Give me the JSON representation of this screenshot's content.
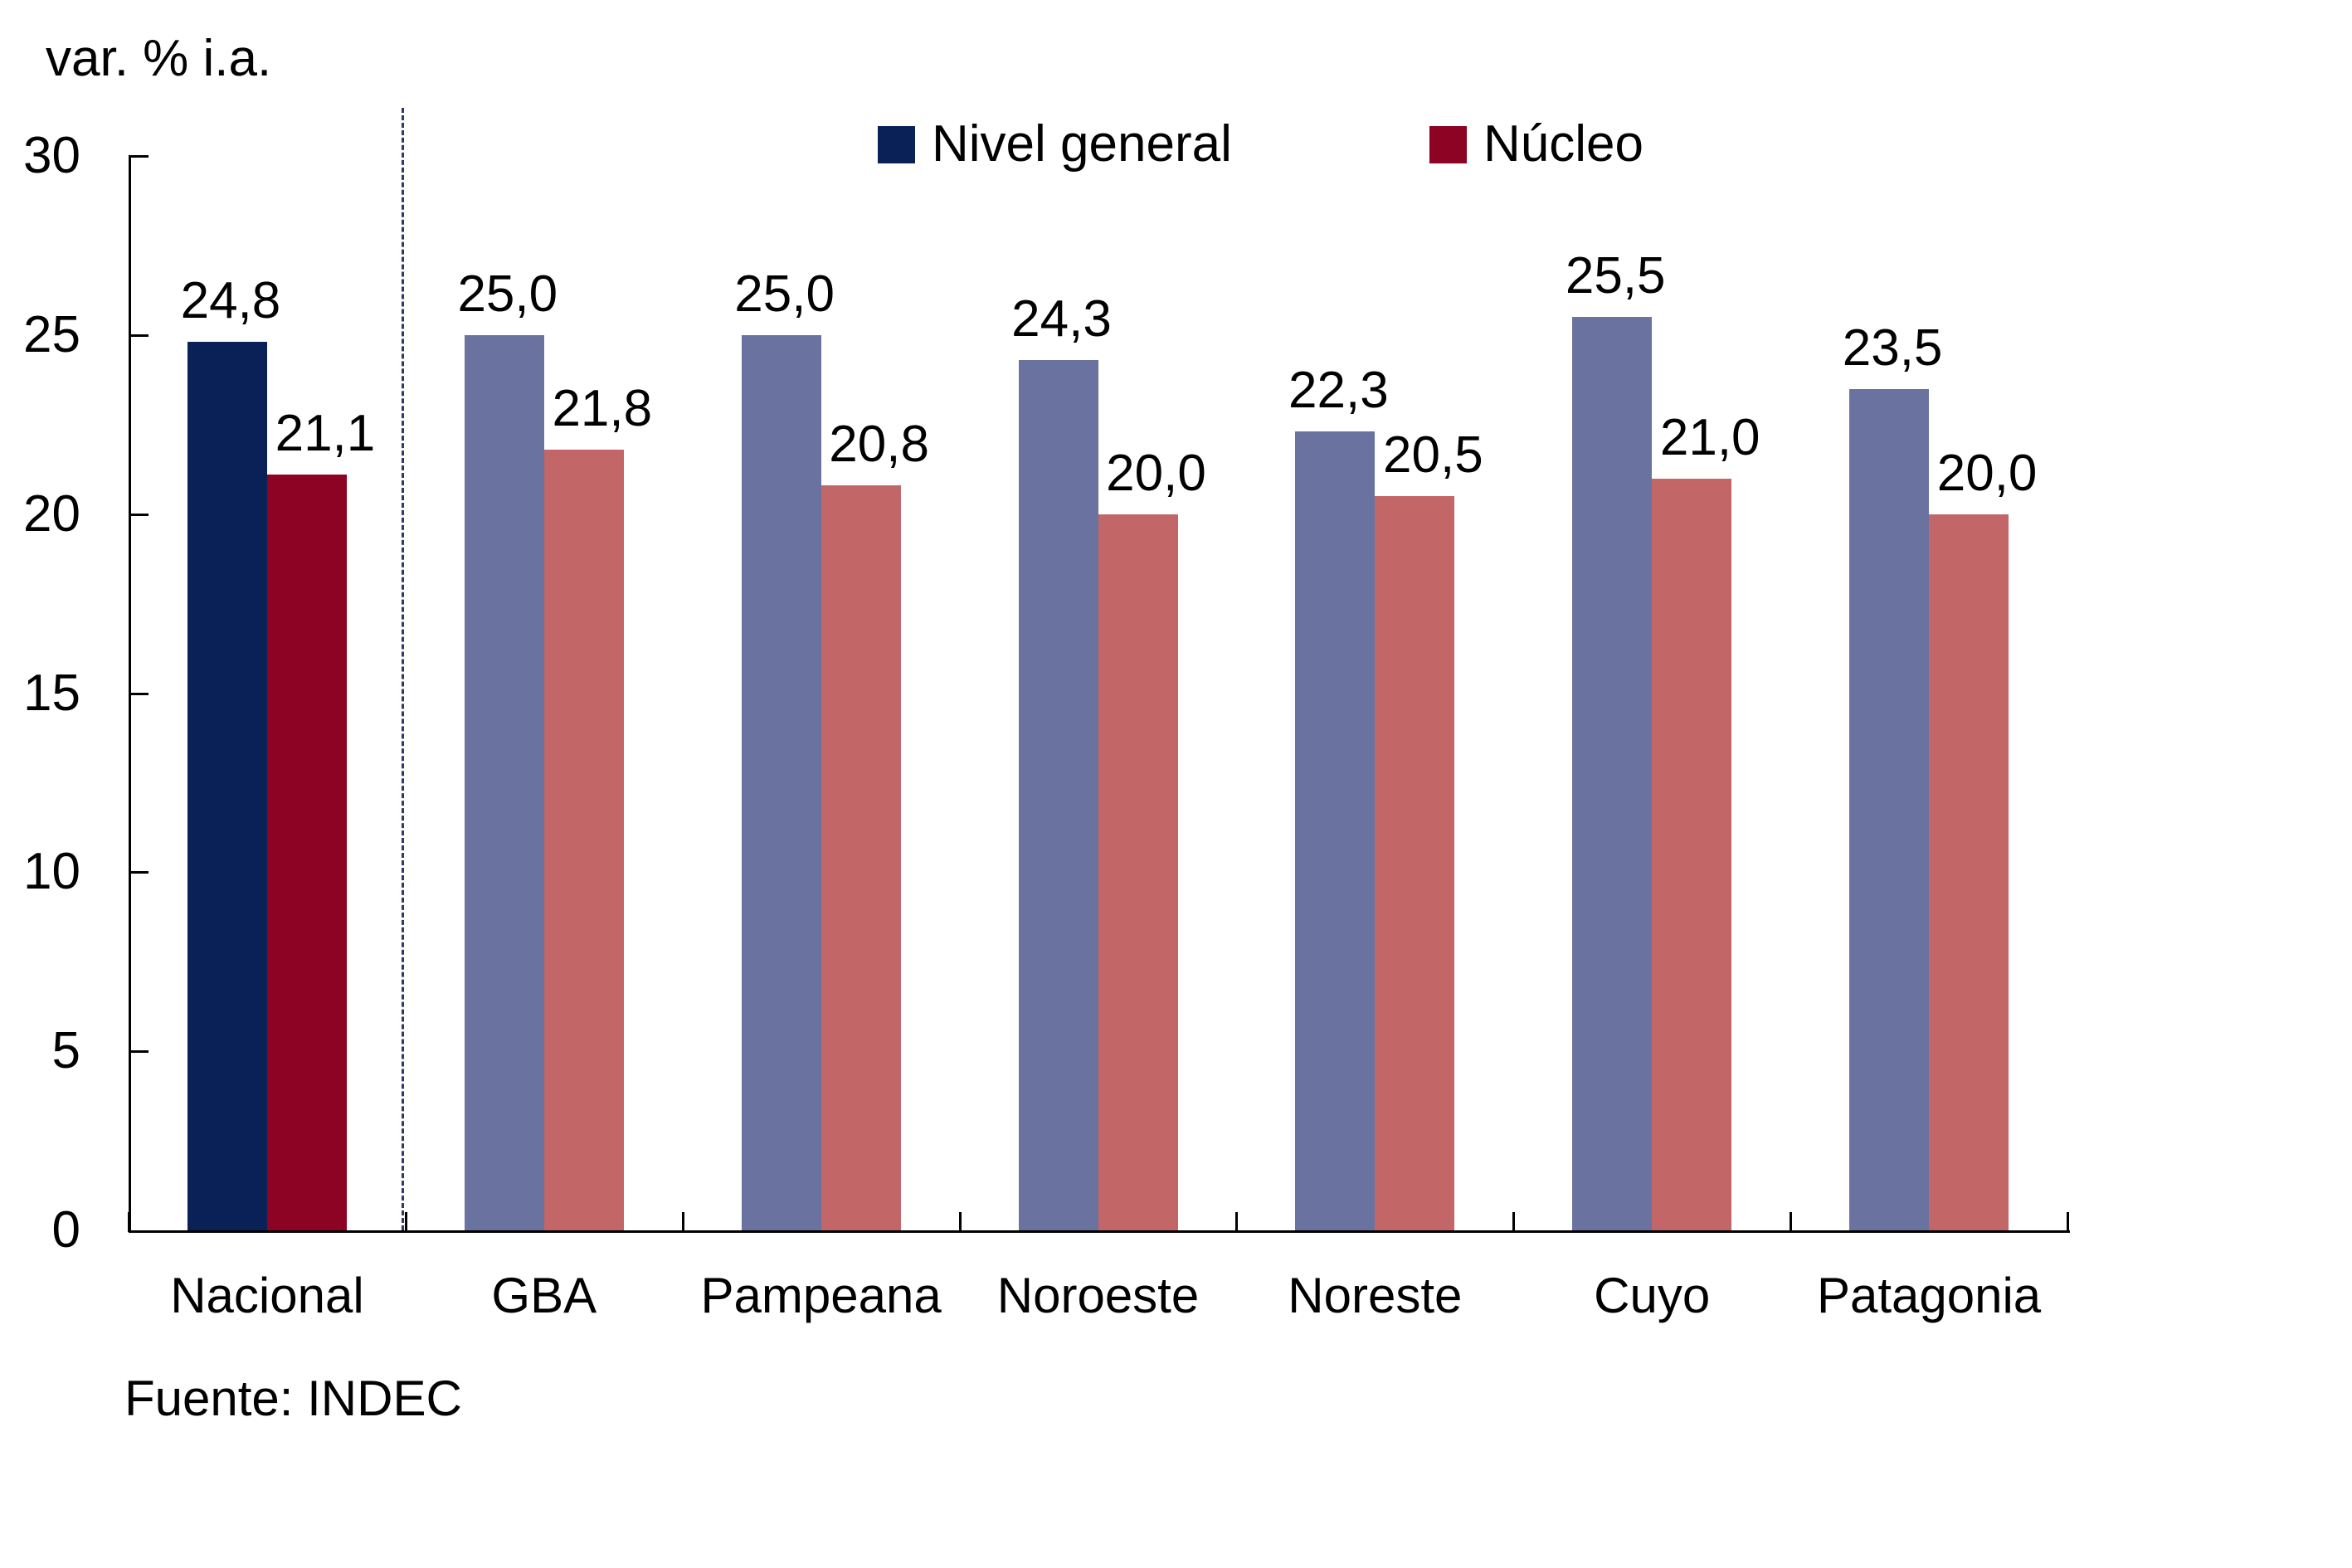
{
  "title": "var. % i.a.",
  "source": "Fuente: INDEC",
  "legend": [
    {
      "label": "Nivel general",
      "color": "#0A2158"
    },
    {
      "label": "Núcleo",
      "color": "#8C0323"
    }
  ],
  "colors": {
    "axis": "#000000",
    "text": "#000000",
    "separator": "#2E3A66",
    "background": "#ffffff"
  },
  "chart_data": {
    "type": "bar",
    "categories": [
      "Nacional",
      "GBA",
      "Pampeana",
      "Noroeste",
      "Noreste",
      "Cuyo",
      "Patagonia"
    ],
    "series": [
      {
        "name": "Nivel general",
        "values": [
          24.8,
          25.0,
          25.0,
          24.3,
          22.3,
          25.5,
          23.5
        ],
        "value_labels": [
          "24,8",
          "25,0",
          "25,0",
          "24,3",
          "22,3",
          "25,5",
          "23,5"
        ],
        "color_highlight": "#0A2158",
        "color_default": "#6A73A0"
      },
      {
        "name": "Núcleo",
        "values": [
          21.1,
          21.8,
          20.8,
          20.0,
          20.5,
          21.0,
          20.0
        ],
        "value_labels": [
          "21,1",
          "21,8",
          "20,8",
          "20,0",
          "20,5",
          "21,0",
          "20,0"
        ],
        "color_highlight": "#8C0323",
        "color_default": "#C26667"
      }
    ],
    "highlight_category": "Nacional",
    "highlight_index": 0,
    "separator_after_index": 0,
    "ylabel": "var. % i.a.",
    "ylim": [
      0,
      30
    ],
    "yticks": [
      0,
      5,
      10,
      15,
      20,
      25,
      30
    ],
    "grid": false,
    "legend_position": "top"
  }
}
